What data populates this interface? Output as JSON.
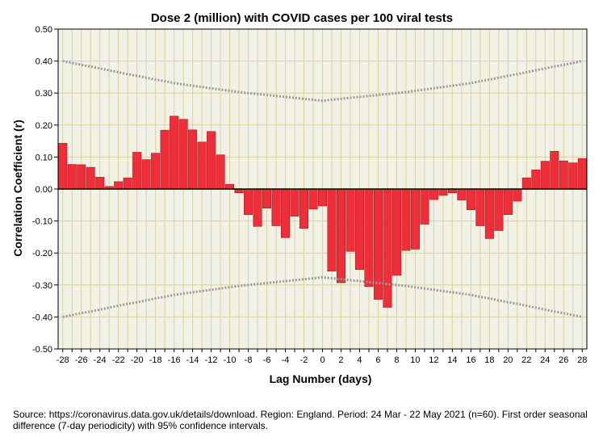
{
  "chart_data": {
    "type": "bar",
    "title": "Dose 2 (million) with COVID cases per 100 viral tests",
    "xlabel": "Lag Number (days)",
    "ylabel": "Correlation Coefficient (r)",
    "ylim": [
      -0.5,
      0.5
    ],
    "yticks": [
      "0.50",
      "0.40",
      "0.30",
      "0.20",
      "0.10",
      "0.00",
      "-0.10",
      "-0.20",
      "-0.30",
      "-0.40",
      "-0.50"
    ],
    "xticks": [
      "-28",
      "-26",
      "-24",
      "-22",
      "-20",
      "-18",
      "-16",
      "-14",
      "-12",
      "-10",
      "-8",
      "-6",
      "-4",
      "-2",
      "0",
      "2",
      "4",
      "6",
      "8",
      "10",
      "12",
      "14",
      "16",
      "18",
      "20",
      "22",
      "24",
      "26",
      "28"
    ],
    "lags": [
      -28,
      -27,
      -26,
      -25,
      -24,
      -23,
      -22,
      -21,
      -20,
      -19,
      -18,
      -17,
      -16,
      -15,
      -14,
      -13,
      -12,
      -11,
      -10,
      -9,
      -8,
      -7,
      -6,
      -5,
      -4,
      -3,
      -2,
      -1,
      0,
      1,
      2,
      3,
      4,
      5,
      6,
      7,
      8,
      9,
      10,
      11,
      12,
      13,
      14,
      15,
      16,
      17,
      18,
      19,
      20,
      21,
      22,
      23,
      24,
      25,
      26,
      27,
      28
    ],
    "values": [
      0.143,
      0.077,
      0.076,
      0.068,
      0.037,
      0.008,
      0.023,
      0.035,
      0.115,
      0.092,
      0.112,
      0.184,
      0.228,
      0.218,
      0.185,
      0.147,
      0.18,
      0.107,
      0.015,
      -0.012,
      -0.08,
      -0.117,
      -0.06,
      -0.115,
      -0.152,
      -0.085,
      -0.123,
      -0.063,
      -0.053,
      -0.257,
      -0.293,
      -0.195,
      -0.252,
      -0.305,
      -0.345,
      -0.37,
      -0.27,
      -0.192,
      -0.188,
      -0.11,
      -0.033,
      -0.02,
      -0.012,
      -0.035,
      -0.065,
      -0.115,
      -0.155,
      -0.13,
      -0.08,
      -0.038,
      0.035,
      0.06,
      0.087,
      0.118,
      0.088,
      0.082,
      0.095
    ],
    "confidence_upper": [
      0.4,
      0.394,
      0.388,
      0.383,
      0.377,
      0.371,
      0.365,
      0.359,
      0.354,
      0.348,
      0.342,
      0.337,
      0.331,
      0.327,
      0.323,
      0.319,
      0.315,
      0.311,
      0.307,
      0.303,
      0.3,
      0.297,
      0.294,
      0.291,
      0.288,
      0.285,
      0.282,
      0.279,
      0.276,
      0.279,
      0.282,
      0.285,
      0.288,
      0.291,
      0.294,
      0.297,
      0.3,
      0.303,
      0.307,
      0.311,
      0.315,
      0.319,
      0.323,
      0.327,
      0.331,
      0.337,
      0.342,
      0.348,
      0.354,
      0.359,
      0.365,
      0.371,
      0.377,
      0.383,
      0.388,
      0.394,
      0.4
    ],
    "colors": {
      "bar": "#ee2e38",
      "bar_edge": "#9a1016",
      "plot_bg": "#f1f1e6",
      "grid": "#d9d2a0",
      "ci": "#9a9a9a",
      "zero": "#000000"
    }
  },
  "source": {
    "text": "Source: https://coronavirus.data.gov.uk/details/download. Region: England. Period: 24 Mar - 22 May 2021 (n=60). First order seasonal difference (7-day periodicity) with 95% confidence intervals."
  }
}
